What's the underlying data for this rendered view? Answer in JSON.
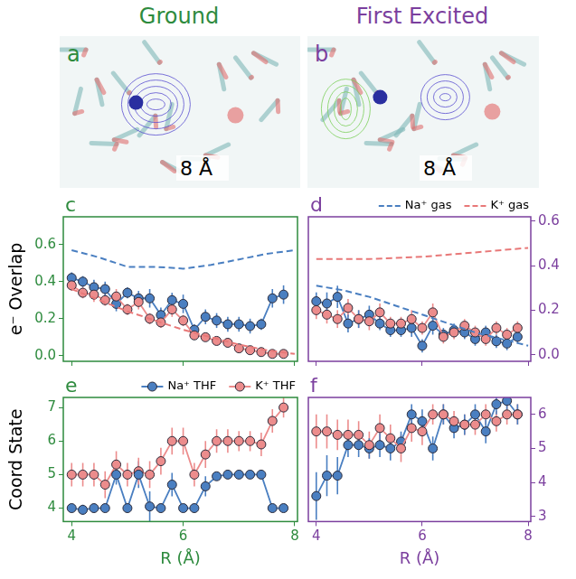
{
  "titles": [
    "Ground",
    "First Excited"
  ],
  "images": [
    {
      "letter": "a",
      "scale": "8 Å"
    },
    {
      "letter": "b",
      "scale": "8 Å"
    }
  ],
  "chart_data": [
    {
      "type": "line",
      "title": "c",
      "y_label": "e⁻ Overlap",
      "tick_labels": "y",
      "grid": false,
      "xlim": [
        3.85,
        8.05
      ],
      "xticks": [
        4,
        6,
        8
      ],
      "ylim": [
        -0.03,
        0.75
      ],
      "yticks": [
        {
          "value": 0,
          "label": "0.0"
        },
        0.2,
        0.4,
        0.6
      ],
      "series": [
        {
          "color": "#4a7fc1",
          "line_style": "dashed",
          "marker": "none",
          "x": [
            4,
            4.5,
            5,
            5.5,
            6,
            6.5,
            7,
            7.5,
            8
          ],
          "values": [
            0.57,
            0.53,
            0.48,
            0.48,
            0.47,
            0.49,
            0.52,
            0.55,
            0.57
          ]
        },
        {
          "color": "#e87878",
          "line_style": "dashed",
          "marker": "none",
          "x": [
            4,
            4.5,
            5,
            5.5,
            6,
            6.5,
            7,
            7.5,
            8
          ],
          "values": [
            0.36,
            0.3,
            0.24,
            0.19,
            0.14,
            0.1,
            0.06,
            0.03,
            0.01
          ]
        },
        {
          "color": "#ec8c8c",
          "line_style": "solid",
          "marker": "circle",
          "x": [
            4.0,
            4.2,
            4.4,
            4.6,
            4.8,
            5.0,
            5.2,
            5.4,
            5.6,
            5.8,
            6.0,
            6.2,
            6.4,
            6.6,
            6.8,
            7.0,
            7.2,
            7.4,
            7.6,
            7.8
          ],
          "values": [
            0.38,
            0.34,
            0.33,
            0.3,
            0.32,
            0.25,
            0.29,
            0.2,
            0.18,
            0.25,
            0.19,
            0.11,
            0.1,
            0.08,
            0.07,
            0.04,
            0.03,
            0.02,
            0.01,
            0.01
          ],
          "errors": [
            0.03,
            0.03,
            0.04,
            0.03,
            0.04,
            0.03,
            0.04,
            0.03,
            0.03,
            0.04,
            0.03,
            0.02,
            0.02,
            0.02,
            0.02,
            0.02,
            0.02,
            0.01,
            0.01,
            0.01
          ]
        },
        {
          "color": "#4a7fc1",
          "line_style": "solid",
          "marker": "circle",
          "x": [
            4.0,
            4.2,
            4.4,
            4.6,
            4.8,
            5.0,
            5.2,
            5.4,
            5.6,
            5.8,
            6.0,
            6.2,
            6.4,
            6.6,
            6.8,
            7.0,
            7.2,
            7.4,
            7.6,
            7.8
          ],
          "values": [
            0.42,
            0.4,
            0.37,
            0.36,
            0.28,
            0.34,
            0.31,
            0.31,
            0.22,
            0.3,
            0.28,
            0.14,
            0.21,
            0.19,
            0.17,
            0.17,
            0.16,
            0.17,
            0.31,
            0.33
          ],
          "errors": [
            0.03,
            0.03,
            0.04,
            0.04,
            0.04,
            0.03,
            0.04,
            0.05,
            0.04,
            0.04,
            0.05,
            0.03,
            0.04,
            0.04,
            0.04,
            0.04,
            0.04,
            0.03,
            0.05,
            0.05
          ]
        }
      ]
    },
    {
      "type": "line",
      "title": "d",
      "tick_labels": "y",
      "grid": false,
      "legend": "top",
      "xlim": [
        3.85,
        8.05
      ],
      "xticks": [
        4,
        6,
        8
      ],
      "ylim": [
        -0.03,
        0.62
      ],
      "yticks": [
        {
          "value": 0,
          "label": "0.0"
        },
        0.2,
        0.4,
        0.6
      ],
      "series": [
        {
          "name": "Na⁺ gas",
          "color": "#4a7fc1",
          "line_style": "dashed",
          "marker": "none",
          "x": [
            4,
            4.5,
            5,
            5.5,
            6,
            6.5,
            7,
            7.5,
            8
          ],
          "values": [
            0.31,
            0.29,
            0.26,
            0.22,
            0.18,
            0.14,
            0.1,
            0.07,
            0.04
          ]
        },
        {
          "name": "K⁺ gas",
          "color": "#e87878",
          "line_style": "dashed",
          "marker": "none",
          "x": [
            4,
            5,
            6,
            7,
            7.5,
            8
          ],
          "values": [
            0.43,
            0.43,
            0.44,
            0.46,
            0.47,
            0.48
          ]
        },
        {
          "color": "#ec8c8c",
          "line_style": "solid",
          "marker": "circle",
          "x": [
            4.0,
            4.2,
            4.4,
            4.6,
            4.8,
            5.0,
            5.2,
            5.4,
            5.6,
            5.8,
            6.0,
            6.2,
            6.4,
            6.6,
            6.8,
            7.0,
            7.2,
            7.4,
            7.6,
            7.8
          ],
          "values": [
            0.2,
            0.18,
            0.16,
            0.21,
            0.16,
            0.15,
            0.19,
            0.14,
            0.14,
            0.16,
            0.12,
            0.19,
            0.08,
            0.1,
            0.13,
            0.1,
            0.07,
            0.12,
            0.09,
            0.12
          ],
          "errors": [
            0.04,
            0.04,
            0.04,
            0.04,
            0.04,
            0.04,
            0.04,
            0.03,
            0.03,
            0.04,
            0.03,
            0.04,
            0.03,
            0.03,
            0.03,
            0.03,
            0.03,
            0.03,
            0.03,
            0.03
          ]
        },
        {
          "color": "#4a7fc1",
          "line_style": "solid",
          "marker": "circle",
          "x": [
            4.0,
            4.2,
            4.4,
            4.6,
            4.8,
            5.0,
            5.2,
            5.4,
            5.6,
            5.8,
            6.0,
            6.2,
            6.4,
            6.6,
            6.8,
            7.0,
            7.2,
            7.4,
            7.6,
            7.8
          ],
          "values": [
            0.24,
            0.23,
            0.26,
            0.14,
            0.16,
            0.18,
            0.14,
            0.11,
            0.11,
            0.12,
            0.04,
            0.13,
            0.09,
            0.11,
            0.1,
            0.07,
            0.1,
            0.06,
            0.05,
            0.08
          ],
          "errors": [
            0.04,
            0.05,
            0.05,
            0.04,
            0.04,
            0.04,
            0.03,
            0.03,
            0.03,
            0.04,
            0.03,
            0.04,
            0.03,
            0.03,
            0.03,
            0.03,
            0.03,
            0.03,
            0.03,
            0.03
          ]
        }
      ]
    },
    {
      "type": "line",
      "title": "e",
      "y_label": "Coord State",
      "x_label": "R (Å)",
      "grid": false,
      "legend": "top",
      "xlim": [
        3.85,
        8.05
      ],
      "xticks": [
        4,
        6,
        8
      ],
      "ylim": [
        3.6,
        7.3
      ],
      "yticks": [
        4,
        5,
        6,
        7
      ],
      "series": [
        {
          "name": "Na⁺ THF",
          "color": "#4a7fc1",
          "line_style": "solid",
          "marker": "circle",
          "x": [
            4.0,
            4.2,
            4.4,
            4.6,
            4.8,
            5.0,
            5.2,
            5.4,
            5.6,
            5.8,
            6.0,
            6.2,
            6.4,
            6.6,
            6.8,
            7.0,
            7.2,
            7.4,
            7.6,
            7.8
          ],
          "values": [
            4.0,
            3.95,
            4.0,
            4.0,
            5.0,
            4.0,
            5.0,
            4.05,
            4.0,
            4.7,
            4.0,
            4.0,
            4.65,
            4.95,
            5.0,
            5.0,
            5.0,
            5.0,
            4.0,
            4.0
          ],
          "errors": [
            0.1,
            0.15,
            0.1,
            0.1,
            0.3,
            0.1,
            0.4,
            0.45,
            0.1,
            0.35,
            0.1,
            0.1,
            0.3,
            0.1,
            0.1,
            0.1,
            0.1,
            0.1,
            0.1,
            0.1
          ]
        },
        {
          "name": "K⁺ THF",
          "color": "#ec8c8c",
          "line_style": "solid",
          "marker": "circle",
          "x": [
            4.0,
            4.2,
            4.4,
            4.6,
            4.8,
            5.0,
            5.2,
            5.4,
            5.6,
            5.8,
            6.0,
            6.2,
            6.4,
            6.6,
            6.8,
            7.0,
            7.2,
            7.4,
            7.6,
            7.8
          ],
          "values": [
            5.0,
            5.0,
            5.0,
            4.7,
            5.3,
            5.0,
            5.1,
            5.0,
            5.4,
            6.0,
            6.0,
            5.0,
            5.6,
            6.0,
            6.0,
            6.0,
            6.0,
            5.9,
            6.6,
            7.0
          ],
          "errors": [
            0.35,
            0.35,
            0.35,
            0.4,
            0.4,
            0.35,
            0.4,
            0.4,
            0.4,
            0.4,
            0.4,
            0.35,
            0.4,
            0.35,
            0.35,
            0.3,
            0.3,
            0.35,
            0.35,
            0.3
          ]
        }
      ]
    },
    {
      "type": "line",
      "title": "f",
      "x_label": "R (Å)",
      "grid": false,
      "xlim": [
        3.85,
        8.05
      ],
      "xticks": [
        4,
        6,
        8
      ],
      "ylim": [
        2.85,
        6.5
      ],
      "yticks": [
        3,
        4,
        5,
        6
      ],
      "series": [
        {
          "color": "#ec8c8c",
          "line_style": "solid",
          "marker": "circle",
          "x": [
            4.0,
            4.2,
            4.4,
            4.6,
            4.8,
            5.0,
            5.2,
            5.4,
            5.6,
            5.8,
            6.0,
            6.2,
            6.4,
            6.6,
            6.8,
            7.0,
            7.2,
            7.4,
            7.6,
            7.8
          ],
          "values": [
            5.5,
            5.5,
            5.4,
            5.4,
            5.4,
            5.1,
            5.6,
            5.3,
            5.0,
            5.6,
            5.5,
            6.0,
            6.0,
            5.8,
            5.7,
            5.7,
            6.0,
            5.8,
            6.0,
            6.0
          ],
          "errors": [
            0.5,
            0.5,
            0.45,
            0.45,
            0.4,
            0.4,
            0.4,
            0.4,
            0.4,
            0.4,
            0.4,
            0.3,
            0.3,
            0.3,
            0.3,
            0.3,
            0.3,
            0.3,
            0.3,
            0.3
          ]
        },
        {
          "color": "#4a7fc1",
          "line_style": "solid",
          "marker": "circle",
          "x": [
            4.0,
            4.2,
            4.4,
            4.6,
            4.8,
            5.0,
            5.2,
            5.4,
            5.6,
            5.8,
            6.0,
            6.2,
            6.4,
            6.6,
            6.8,
            7.0,
            7.2,
            7.4,
            7.6,
            7.8
          ],
          "values": [
            3.6,
            4.2,
            4.2,
            5.1,
            5.1,
            5.0,
            5.1,
            5.0,
            5.2,
            6.0,
            5.8,
            5.0,
            6.0,
            5.6,
            5.7,
            6.0,
            5.5,
            6.3,
            6.4,
            6.0
          ],
          "errors": [
            0.7,
            0.6,
            0.55,
            0.35,
            0.35,
            0.3,
            0.35,
            0.35,
            0.3,
            0.3,
            0.35,
            0.35,
            0.3,
            0.3,
            0.3,
            0.3,
            0.35,
            0.3,
            0.25,
            0.3
          ]
        }
      ]
    }
  ]
}
